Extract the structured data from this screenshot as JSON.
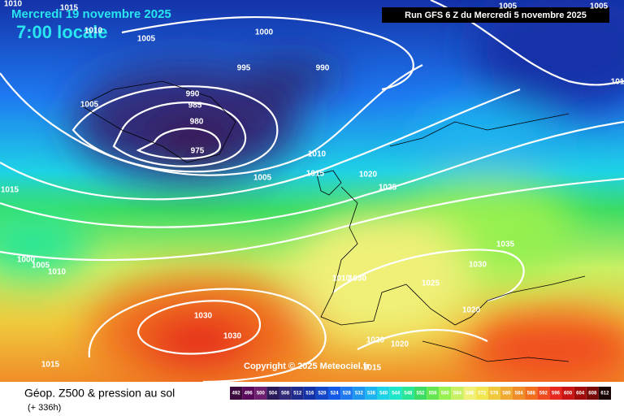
{
  "header": {
    "date": "Mercredi 19 novembre 2025",
    "time": "7:00 locale",
    "run": "Run GFS 6 Z du Mercredi 5 novembre 2025"
  },
  "copyright": "Copyright © 2025 Meteociel.fr",
  "footer": {
    "title": "Géop. Z500 & pression au sol",
    "subtitle": "(+ 336h)"
  },
  "scale": {
    "labels": [
      "492",
      "496",
      "500",
      "504",
      "508",
      "512",
      "516",
      "520",
      "524",
      "528",
      "532",
      "536",
      "540",
      "544",
      "548",
      "552",
      "556",
      "560",
      "564",
      "568",
      "572",
      "576",
      "580",
      "584",
      "588",
      "592",
      "596",
      "600",
      "604",
      "608",
      "612"
    ],
    "colors": [
      "#3c0a3c",
      "#5a0a5a",
      "#6e1e6e",
      "#2a1a5a",
      "#302a78",
      "#1e2a8c",
      "#1432a8",
      "#1446c8",
      "#145ae6",
      "#1e78f0",
      "#1e96f0",
      "#1eb4f0",
      "#1ed2e6",
      "#1ee6c8",
      "#28e696",
      "#3cdc64",
      "#64e650",
      "#96f050",
      "#c8f064",
      "#f0f078",
      "#f0e650",
      "#f0c83c",
      "#f0aa32",
      "#f08c28",
      "#f06e1e",
      "#f04b1e",
      "#e6281e",
      "#c81414",
      "#a00a0a",
      "#780a0a",
      "#1a0505"
    ]
  },
  "isobars": [
    "1010",
    "1015",
    "1010",
    "1005",
    "1000",
    "995",
    "990",
    "990",
    "985",
    "980",
    "975",
    "1005",
    "1010",
    "1015",
    "1020",
    "1025",
    "1005",
    "1015",
    "1000",
    "1005",
    "1010",
    "1010",
    "1030",
    "1025",
    "1030",
    "1035",
    "1020",
    "1030",
    "1030",
    "1020",
    "1020",
    "1015",
    "1015",
    "1005",
    "1005",
    "101"
  ]
}
